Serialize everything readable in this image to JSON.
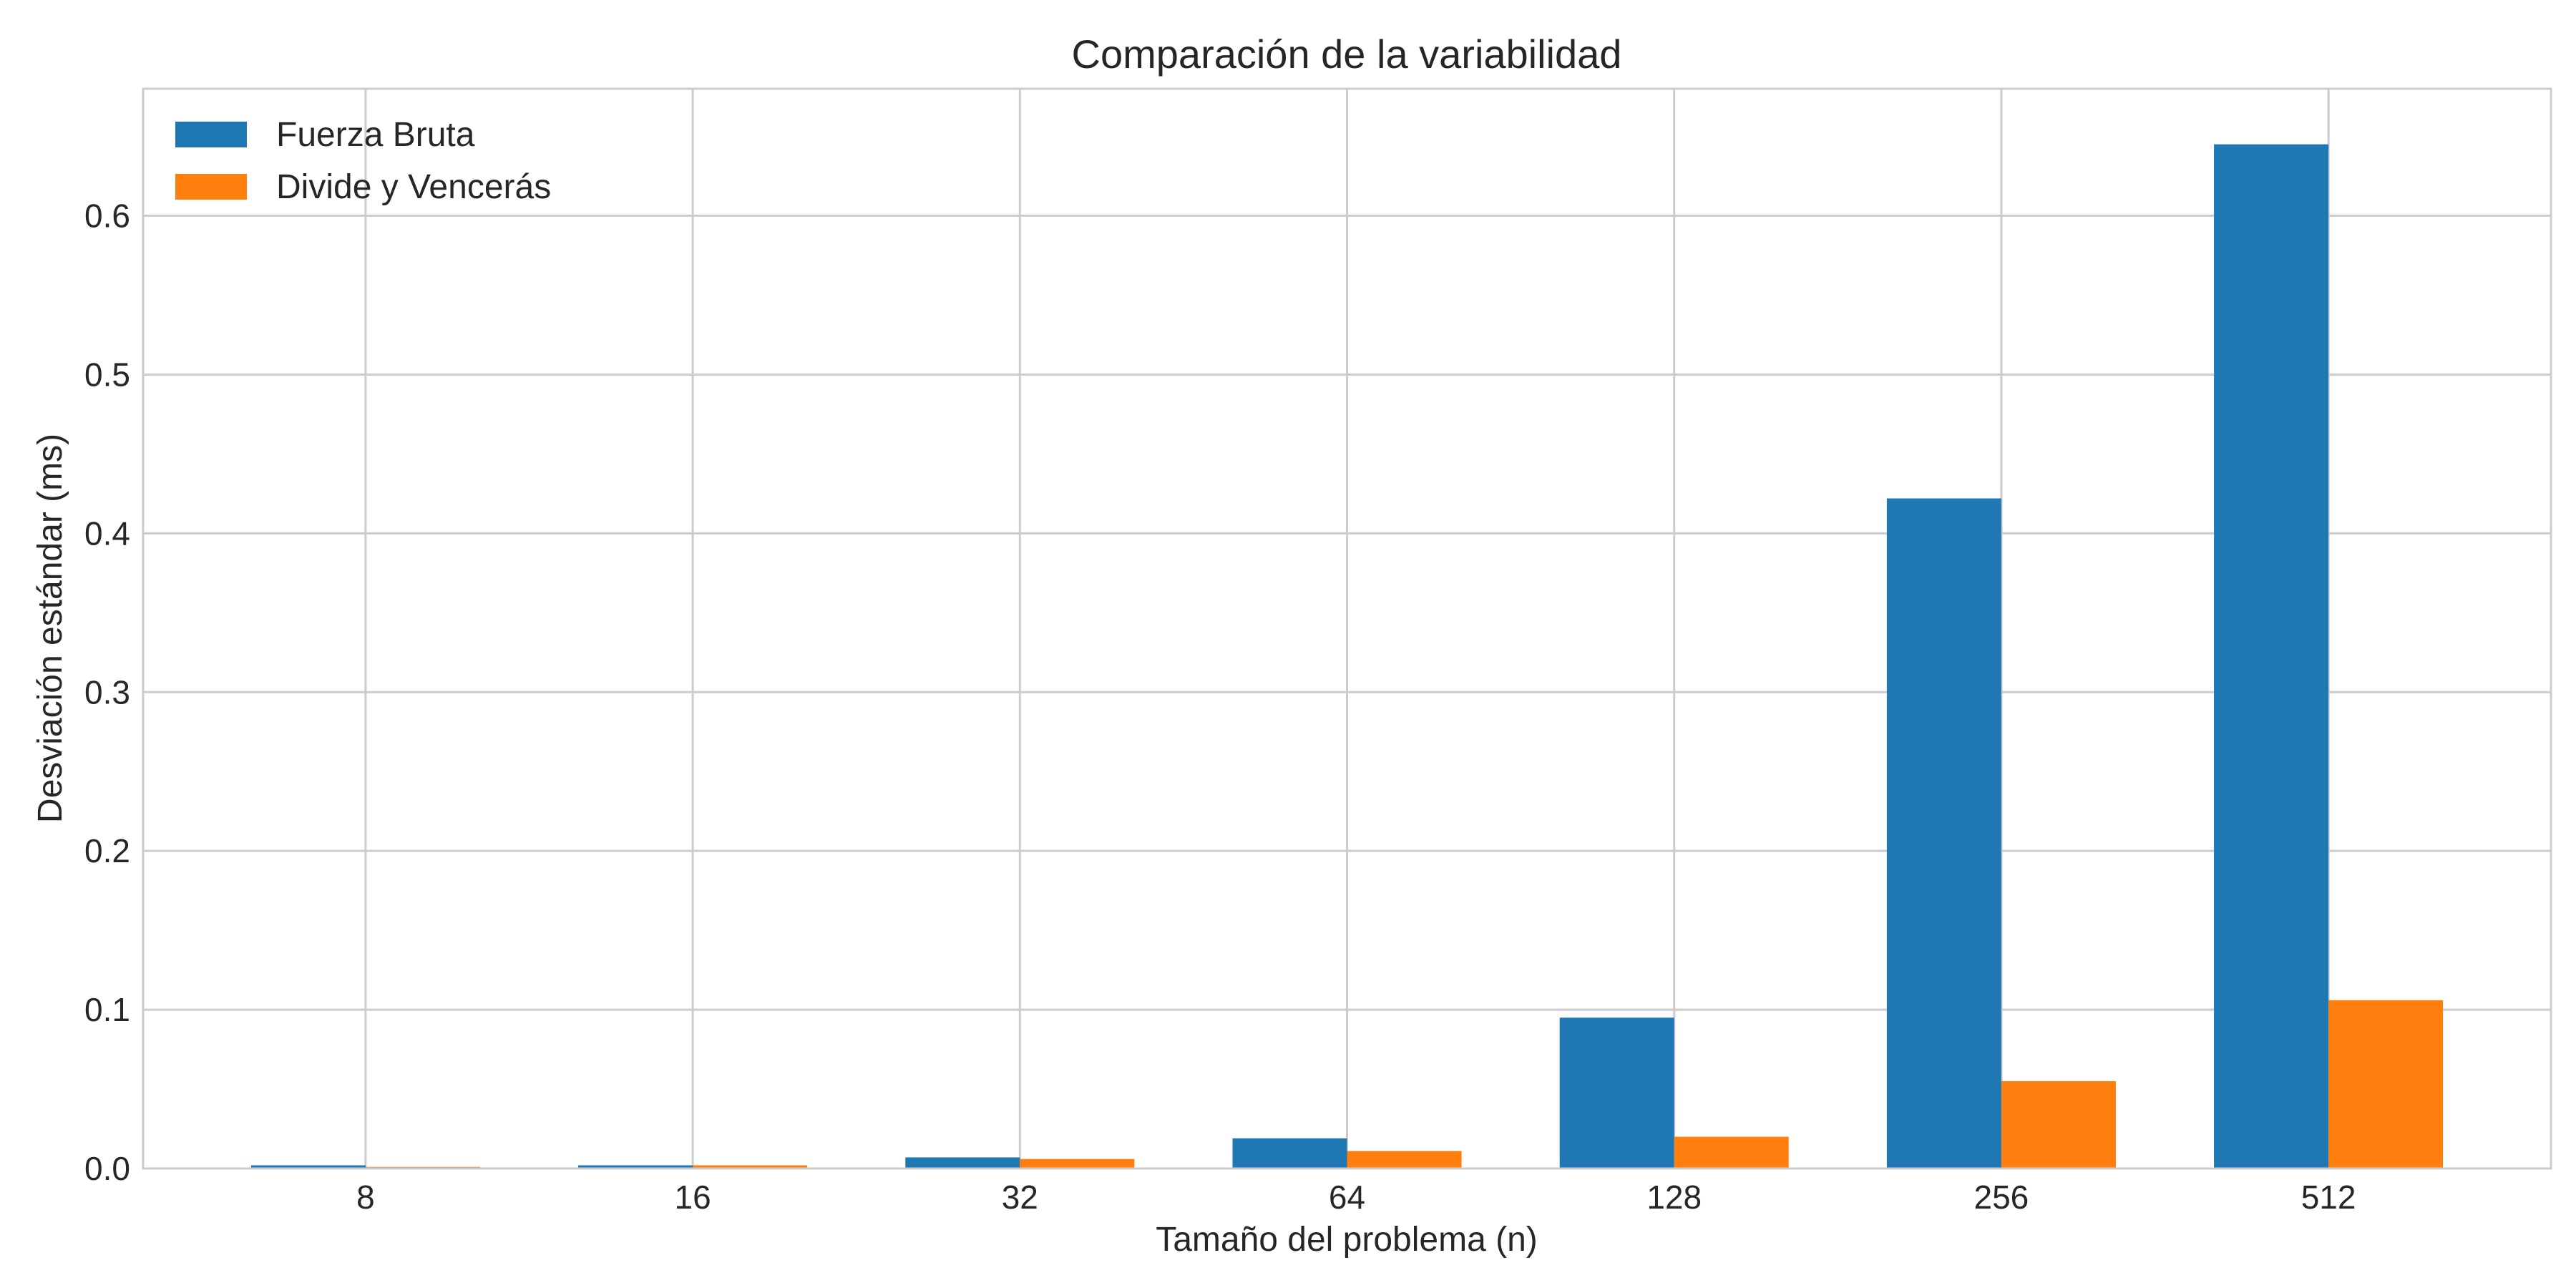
{
  "chart_data": {
    "type": "bar",
    "title": "Comparación de la variabilidad",
    "xlabel": "Tamaño del problema (n)",
    "ylabel": "Desviación estándar (ms)",
    "categories": [
      "8",
      "16",
      "32",
      "64",
      "128",
      "256",
      "512"
    ],
    "series": [
      {
        "name": "Fuerza Bruta",
        "color": "#1f77b4",
        "values": [
          0.002,
          0.002,
          0.007,
          0.019,
          0.095,
          0.422,
          0.645
        ]
      },
      {
        "name": "Divide y Vencerás",
        "color": "#ff7f0e",
        "values": [
          0.001,
          0.002,
          0.006,
          0.011,
          0.02,
          0.055,
          0.106
        ]
      }
    ],
    "ylim": [
      0,
      0.68
    ],
    "yticks": [
      0.0,
      0.1,
      0.2,
      0.3,
      0.4,
      0.5,
      0.6
    ],
    "ytick_labels": [
      "0.0",
      "0.1",
      "0.2",
      "0.3",
      "0.4",
      "0.5",
      "0.6"
    ],
    "grid": true,
    "legend_position": "top-left"
  }
}
